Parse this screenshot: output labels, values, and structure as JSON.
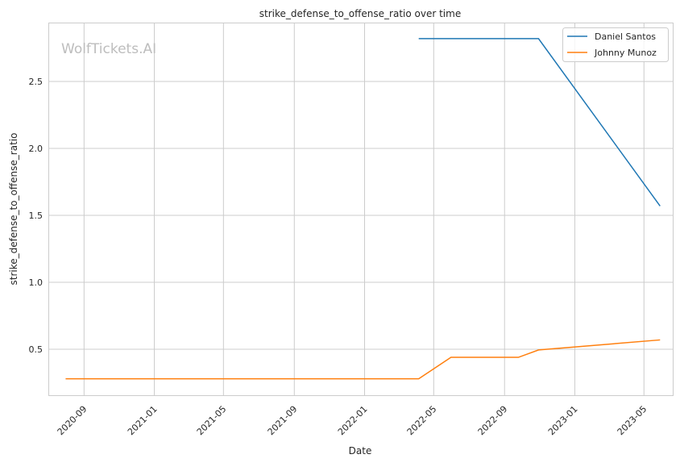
{
  "chart_data": {
    "type": "line",
    "title": "strike_defense_to_offense_ratio over time",
    "xlabel": "Date",
    "ylabel": "strike_defense_to_offense_ratio",
    "watermark": "WolfTickets.AI",
    "xlim": [
      "2020-07-01",
      "2023-06-20"
    ],
    "ylim": [
      0.157,
      2.94
    ],
    "x_ticks": [
      "2020-09",
      "2021-01",
      "2021-05",
      "2021-09",
      "2022-01",
      "2022-05",
      "2022-09",
      "2023-01",
      "2023-05"
    ],
    "y_ticks": [
      0.5,
      1.0,
      1.5,
      2.0,
      2.5
    ],
    "grid": true,
    "legend": "top-right",
    "series": [
      {
        "name": "Daniel Santos",
        "color": "#1f77b4",
        "x": [
          "2022-04-05",
          "2022-10-30",
          "2023-05-29"
        ],
        "y": [
          2.82,
          2.82,
          1.57
        ]
      },
      {
        "name": "Johnny Munoz",
        "color": "#ff7f0e",
        "x": [
          "2020-07-31",
          "2022-04-05",
          "2022-05-31",
          "2022-09-25",
          "2022-10-30",
          "2023-05-29"
        ],
        "y": [
          0.28,
          0.28,
          0.44,
          0.44,
          0.495,
          0.57
        ]
      }
    ]
  }
}
